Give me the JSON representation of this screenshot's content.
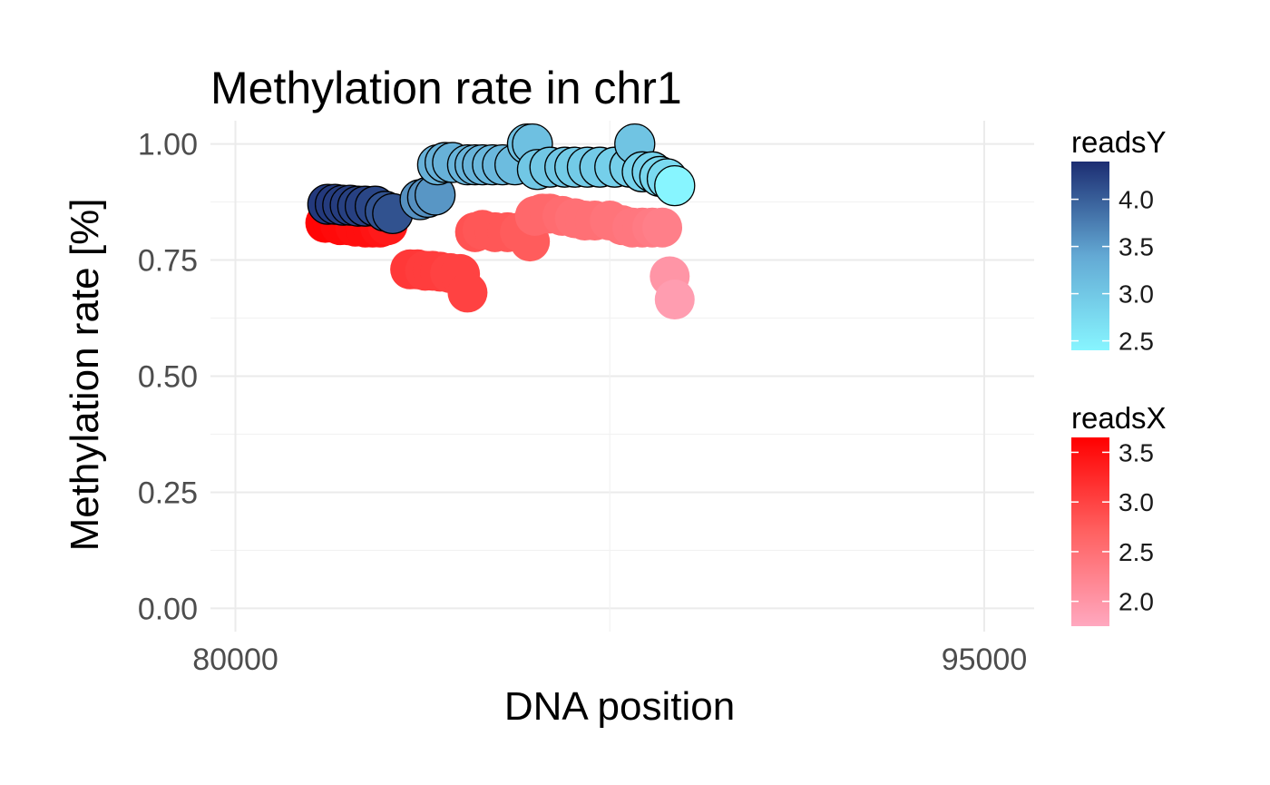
{
  "chart_data": {
    "type": "scatter",
    "title": "Methylation rate in chr1",
    "xlabel": "DNA position",
    "ylabel": "Methylation rate [%]",
    "xlim": [
      79500,
      96000
    ],
    "ylim": [
      -0.05,
      1.05
    ],
    "x_ticks": [
      80000,
      95000
    ],
    "x_tick_labels": [
      "80000",
      "95000"
    ],
    "y_ticks": [
      0,
      0.25,
      0.5,
      0.75,
      1.0
    ],
    "y_tick_labels": [
      "0.00",
      "0.25",
      "0.50",
      "0.75",
      "1.00"
    ],
    "grid": true,
    "legend_position": "right",
    "series": [
      {
        "name": "readsX",
        "fill": "gradient",
        "outline": "none",
        "points": [
          {
            "x": 81800,
            "y": 0.83,
            "c": 3.6
          },
          {
            "x": 81950,
            "y": 0.83,
            "c": 3.6
          },
          {
            "x": 82100,
            "y": 0.825,
            "c": 3.55
          },
          {
            "x": 82250,
            "y": 0.825,
            "c": 3.55
          },
          {
            "x": 82400,
            "y": 0.822,
            "c": 3.5
          },
          {
            "x": 82600,
            "y": 0.82,
            "c": 3.5
          },
          {
            "x": 82750,
            "y": 0.82,
            "c": 3.5
          },
          {
            "x": 82900,
            "y": 0.82,
            "c": 3.45
          },
          {
            "x": 83050,
            "y": 0.825,
            "c": 3.4
          },
          {
            "x": 83500,
            "y": 0.73,
            "c": 3.1
          },
          {
            "x": 83650,
            "y": 0.73,
            "c": 3.1
          },
          {
            "x": 83800,
            "y": 0.727,
            "c": 3.05
          },
          {
            "x": 83950,
            "y": 0.727,
            "c": 3.05
          },
          {
            "x": 84100,
            "y": 0.725,
            "c": 3.05
          },
          {
            "x": 84300,
            "y": 0.722,
            "c": 3.0
          },
          {
            "x": 84500,
            "y": 0.72,
            "c": 3.0
          },
          {
            "x": 84650,
            "y": 0.68,
            "c": 3.0
          },
          {
            "x": 84800,
            "y": 0.81,
            "c": 2.85
          },
          {
            "x": 84950,
            "y": 0.815,
            "c": 2.8
          },
          {
            "x": 85200,
            "y": 0.81,
            "c": 2.8
          },
          {
            "x": 85450,
            "y": 0.81,
            "c": 2.8
          },
          {
            "x": 85700,
            "y": 0.81,
            "c": 2.75
          },
          {
            "x": 85900,
            "y": 0.79,
            "c": 2.75
          },
          {
            "x": 86000,
            "y": 0.845,
            "c": 2.6
          },
          {
            "x": 86150,
            "y": 0.85,
            "c": 2.6
          },
          {
            "x": 86300,
            "y": 0.85,
            "c": 2.6
          },
          {
            "x": 86550,
            "y": 0.845,
            "c": 2.55
          },
          {
            "x": 86800,
            "y": 0.84,
            "c": 2.5
          },
          {
            "x": 87000,
            "y": 0.835,
            "c": 2.5
          },
          {
            "x": 87200,
            "y": 0.835,
            "c": 2.5
          },
          {
            "x": 87500,
            "y": 0.835,
            "c": 2.45
          },
          {
            "x": 87750,
            "y": 0.825,
            "c": 2.45
          },
          {
            "x": 87950,
            "y": 0.82,
            "c": 2.4
          },
          {
            "x": 88150,
            "y": 0.82,
            "c": 2.4
          },
          {
            "x": 88350,
            "y": 0.82,
            "c": 2.35
          },
          {
            "x": 88550,
            "y": 0.82,
            "c": 2.3
          },
          {
            "x": 88700,
            "y": 0.715,
            "c": 2.0
          },
          {
            "x": 88800,
            "y": 0.665,
            "c": 1.9
          }
        ]
      },
      {
        "name": "readsY",
        "fill": "gradient",
        "outline": "#000000",
        "points": [
          {
            "x": 81850,
            "y": 0.87,
            "c": 4.3
          },
          {
            "x": 82000,
            "y": 0.87,
            "c": 4.3
          },
          {
            "x": 82150,
            "y": 0.868,
            "c": 4.28
          },
          {
            "x": 82300,
            "y": 0.868,
            "c": 4.28
          },
          {
            "x": 82450,
            "y": 0.866,
            "c": 4.25
          },
          {
            "x": 82600,
            "y": 0.866,
            "c": 4.25
          },
          {
            "x": 82800,
            "y": 0.866,
            "c": 4.2
          },
          {
            "x": 83000,
            "y": 0.855,
            "c": 4.1
          },
          {
            "x": 83150,
            "y": 0.85,
            "c": 4.1
          },
          {
            "x": 83700,
            "y": 0.88,
            "c": 3.6
          },
          {
            "x": 83850,
            "y": 0.885,
            "c": 3.6
          },
          {
            "x": 84000,
            "y": 0.89,
            "c": 3.55
          },
          {
            "x": 84050,
            "y": 0.955,
            "c": 3.3
          },
          {
            "x": 84200,
            "y": 0.96,
            "c": 3.3
          },
          {
            "x": 84350,
            "y": 0.96,
            "c": 3.3
          },
          {
            "x": 84650,
            "y": 0.955,
            "c": 3.25
          },
          {
            "x": 84800,
            "y": 0.955,
            "c": 3.25
          },
          {
            "x": 84950,
            "y": 0.955,
            "c": 3.25
          },
          {
            "x": 85150,
            "y": 0.955,
            "c": 3.2
          },
          {
            "x": 85350,
            "y": 0.955,
            "c": 3.2
          },
          {
            "x": 85600,
            "y": 0.955,
            "c": 3.15
          },
          {
            "x": 85850,
            "y": 1.0,
            "c": 3.1
          },
          {
            "x": 85950,
            "y": 1.0,
            "c": 3.1
          },
          {
            "x": 86050,
            "y": 0.945,
            "c": 3.0
          },
          {
            "x": 86300,
            "y": 0.95,
            "c": 3.0
          },
          {
            "x": 86600,
            "y": 0.95,
            "c": 3.0
          },
          {
            "x": 86800,
            "y": 0.95,
            "c": 2.95
          },
          {
            "x": 87050,
            "y": 0.95,
            "c": 2.95
          },
          {
            "x": 87300,
            "y": 0.95,
            "c": 2.95
          },
          {
            "x": 87600,
            "y": 0.95,
            "c": 2.9
          },
          {
            "x": 87900,
            "y": 0.95,
            "c": 2.9
          },
          {
            "x": 88000,
            "y": 1.0,
            "c": 3.05
          },
          {
            "x": 88150,
            "y": 0.94,
            "c": 2.85
          },
          {
            "x": 88350,
            "y": 0.94,
            "c": 2.85
          },
          {
            "x": 88500,
            "y": 0.93,
            "c": 2.8
          },
          {
            "x": 88650,
            "y": 0.925,
            "c": 2.75
          },
          {
            "x": 88800,
            "y": 0.91,
            "c": 2.4
          }
        ]
      }
    ],
    "color_scales": [
      {
        "title": "readsY",
        "min": 2.4,
        "max": 4.4,
        "low": "#87f5ff",
        "mid": "#63a9d4",
        "high": "#1c2d72",
        "ticks": [
          2.5,
          3.0,
          3.5,
          4.0
        ],
        "tick_labels": [
          "2.5",
          "3.0",
          "3.5",
          "4.0"
        ]
      },
      {
        "title": "readsX",
        "min": 1.75,
        "max": 3.65,
        "low": "#ffa8bf",
        "mid": "#ff6161",
        "high": "#ff0000",
        "ticks": [
          2.0,
          2.5,
          3.0,
          3.5
        ],
        "tick_labels": [
          "2.0",
          "2.5",
          "3.0",
          "3.5"
        ]
      }
    ]
  }
}
